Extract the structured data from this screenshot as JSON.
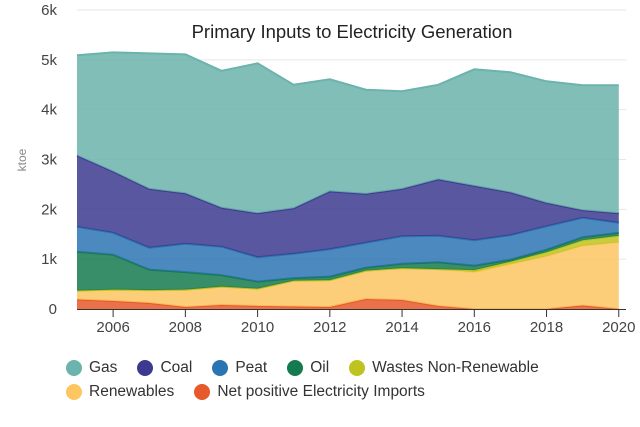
{
  "chart_data": {
    "type": "area",
    "stacked": true,
    "title": "Primary Inputs to Electricity Generation",
    "ylabel": "ktoe",
    "xlabel": "",
    "x": [
      2005,
      2006,
      2007,
      2008,
      2009,
      2010,
      2011,
      2012,
      2013,
      2014,
      2015,
      2016,
      2017,
      2018,
      2019,
      2020
    ],
    "xticks": [
      2006,
      2008,
      2010,
      2012,
      2014,
      2016,
      2018,
      2020
    ],
    "xlim": [
      2005,
      2020.2
    ],
    "ylim": [
      0,
      6000
    ],
    "yticks": [
      0,
      1000,
      2000,
      3000,
      4000,
      5000,
      6000
    ],
    "ytick_labels": [
      "0",
      "1k",
      "2k",
      "3k",
      "4k",
      "5k",
      "6k"
    ],
    "grid": true,
    "legend_position": "bottom",
    "series": [
      {
        "name": "Net positive Electricity Imports",
        "color": "#e6592a",
        "values": [
          190,
          160,
          120,
          40,
          80,
          60,
          50,
          40,
          200,
          180,
          60,
          0,
          0,
          0,
          70,
          0
        ]
      },
      {
        "name": "Renewables",
        "color": "#fdc661",
        "values": [
          180,
          230,
          260,
          350,
          370,
          350,
          520,
          540,
          570,
          640,
          740,
          740,
          900,
          1060,
          1200,
          1340
        ]
      },
      {
        "name": "Wastes Non-Renewable",
        "color": "#bfc31f",
        "values": [
          0,
          0,
          0,
          0,
          0,
          0,
          0,
          0,
          0,
          0,
          0,
          40,
          50,
          80,
          110,
          130
        ]
      },
      {
        "name": "Oil",
        "color": "#157a4f",
        "values": [
          780,
          700,
          410,
          350,
          230,
          140,
          50,
          70,
          60,
          90,
          140,
          90,
          40,
          50,
          60,
          60
        ]
      },
      {
        "name": "Peat",
        "color": "#2b74b3",
        "values": [
          500,
          440,
          440,
          570,
          570,
          490,
          490,
          550,
          500,
          550,
          530,
          510,
          490,
          470,
          390,
          200
        ]
      },
      {
        "name": "Coal",
        "color": "#3c3a8f",
        "values": [
          1430,
          1230,
          1180,
          1010,
          780,
          880,
          910,
          1160,
          980,
          950,
          1130,
          1090,
          860,
          470,
          150,
          190
        ]
      },
      {
        "name": "Gas",
        "color": "#6bb3ac",
        "values": [
          2010,
          2390,
          2720,
          2790,
          2750,
          3010,
          2480,
          2250,
          2090,
          1960,
          1900,
          2340,
          2410,
          2440,
          2510,
          2570
        ]
      }
    ]
  },
  "legend": {
    "rows": [
      [
        "Gas",
        "Coal",
        "Peat",
        "Oil",
        "Wastes Non-Renewable"
      ],
      [
        "Renewables",
        "Net positive Electricity Imports"
      ]
    ]
  }
}
